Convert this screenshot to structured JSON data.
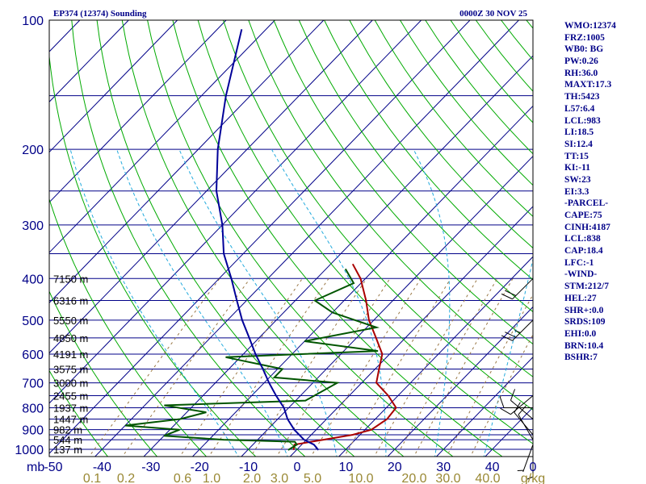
{
  "chart_data": {
    "type": "skew-t",
    "title_left": "EP374 (12374) Sounding",
    "title_right": "0000Z 30 NOV 25",
    "ylim": [
      100,
      1000
    ],
    "xlim": [
      -50,
      50
    ],
    "pressure_ticks": [
      {
        "p": 100,
        "label": "100"
      },
      {
        "p": 200,
        "label": "200"
      },
      {
        "p": 300,
        "label": "300"
      },
      {
        "p": 400,
        "label": "400"
      },
      {
        "p": 500,
        "label": "500"
      },
      {
        "p": 600,
        "label": "600"
      },
      {
        "p": 700,
        "label": "700"
      },
      {
        "p": 800,
        "label": "800"
      },
      {
        "p": 900,
        "label": "900"
      },
      {
        "p": 1000,
        "label": "1000"
      }
    ],
    "isobars": [
      100,
      150,
      200,
      250,
      300,
      350,
      400,
      450,
      500,
      550,
      600,
      650,
      700,
      750,
      800,
      850,
      900,
      925,
      950,
      1000
    ],
    "temp_ticks": [
      {
        "t": -50,
        "label": "-50"
      },
      {
        "t": -40,
        "label": "-40"
      },
      {
        "t": -30,
        "label": "-30"
      },
      {
        "t": -20,
        "label": "-20"
      },
      {
        "t": -10,
        "label": "-10"
      },
      {
        "t": 0,
        "label": "0"
      },
      {
        "t": 10,
        "label": "10"
      },
      {
        "t": 20,
        "label": "20"
      },
      {
        "t": 30,
        "label": "30"
      },
      {
        "t": 40,
        "label": "40"
      }
    ],
    "mb_label": "mb",
    "wind_axis_label": "0",
    "gkg_labels": [
      "0.1",
      "0.2",
      "0.6",
      "1.0",
      "2.0",
      "3.0",
      "5.0",
      "10.0",
      "20.0",
      "30.0",
      "40.0"
    ],
    "gkg_unit": "g/kg",
    "height_labels": [
      {
        "p": 400,
        "label": "7150 m"
      },
      {
        "p": 450,
        "label": "6316 m"
      },
      {
        "p": 500,
        "label": "5550 m"
      },
      {
        "p": 550,
        "label": "4850 m"
      },
      {
        "p": 600,
        "label": "4191 m"
      },
      {
        "p": 650,
        "label": "3575 m"
      },
      {
        "p": 700,
        "label": "3000 m"
      },
      {
        "p": 750,
        "label": "2455 m"
      },
      {
        "p": 800,
        "label": "1937 m"
      },
      {
        "p": 850,
        "label": "1447 m"
      },
      {
        "p": 900,
        "label": "982 m"
      },
      {
        "p": 950,
        "label": "544 m"
      },
      {
        "p": 1000,
        "label": "137 m"
      }
    ],
    "series": [
      {
        "name": "temperature",
        "color": "#aa0000",
        "points": [
          [
            1004,
            -0.6
          ],
          [
            975,
            -1.5
          ],
          [
            950,
            3.5
          ],
          [
            925,
            8.5
          ],
          [
            900,
            11.3
          ],
          [
            850,
            12.4
          ],
          [
            800,
            12.0
          ],
          [
            750,
            8.0
          ],
          [
            700,
            3.0
          ],
          [
            650,
            0.8
          ],
          [
            600,
            -1.5
          ],
          [
            550,
            -6.0
          ],
          [
            500,
            -11.0
          ],
          [
            450,
            -15.5
          ],
          [
            400,
            -21.0
          ],
          [
            370,
            -25.5
          ]
        ]
      },
      {
        "name": "dewpoint",
        "color": "#005500",
        "points": [
          [
            1004,
            -1.7
          ],
          [
            975,
            -1.0
          ],
          [
            960,
            -2.0
          ],
          [
            950,
            -17.0
          ],
          [
            930,
            -30.0
          ],
          [
            900,
            -28.0
          ],
          [
            880,
            -40.0
          ],
          [
            850,
            -30.0
          ],
          [
            820,
            -26.0
          ],
          [
            790,
            -36.0
          ],
          [
            770,
            -8.0
          ],
          [
            700,
            -5.0
          ],
          [
            680,
            -19.0
          ],
          [
            650,
            -19.0
          ],
          [
            610,
            -33.0
          ],
          [
            590,
            -3.0
          ],
          [
            560,
            -20.0
          ],
          [
            520,
            -8.0
          ],
          [
            480,
            -20.0
          ],
          [
            450,
            -26.0
          ],
          [
            410,
            -21.5
          ],
          [
            380,
            -26.0
          ]
        ]
      },
      {
        "name": "parcel",
        "color": "#000099",
        "points": [
          [
            1004,
            4.5
          ],
          [
            975,
            2.5
          ],
          [
            950,
            -0.5
          ],
          [
            900,
            -4.5
          ],
          [
            850,
            -8.0
          ],
          [
            800,
            -11.0
          ],
          [
            750,
            -15.0
          ],
          [
            700,
            -19.0
          ],
          [
            650,
            -23.0
          ],
          [
            600,
            -27.5
          ],
          [
            550,
            -32.0
          ],
          [
            500,
            -37.0
          ],
          [
            450,
            -42.0
          ],
          [
            400,
            -47.5
          ],
          [
            350,
            -54.0
          ],
          [
            300,
            -60.0
          ],
          [
            250,
            -68.0
          ],
          [
            200,
            -76.0
          ],
          [
            150,
            -85.0
          ],
          [
            105,
            -95.0
          ]
        ]
      }
    ],
    "wind_barbs": [
      {
        "p": 1000,
        "dir": 180,
        "speed": 5
      },
      {
        "p": 975,
        "dir": 200,
        "speed": 5
      },
      {
        "p": 950,
        "dir": 330,
        "speed": 10
      },
      {
        "p": 925,
        "dir": 320,
        "speed": 10
      },
      {
        "p": 850,
        "dir": 310,
        "speed": 10
      },
      {
        "p": 800,
        "dir": 270,
        "speed": 10
      },
      {
        "p": 750,
        "dir": 230,
        "speed": 10
      },
      {
        "p": 500,
        "dir": 225,
        "speed": 25
      },
      {
        "p": 400,
        "dir": 225,
        "speed": 20
      }
    ]
  },
  "indices": [
    "WMO:12374",
    "FRZ:1005",
    "WB0: BG",
    "PW:0.26",
    "RH:36.0",
    "MAXT:17.3",
    "TH:5423",
    "L57:6.4",
    "LCL:983",
    "LI:18.5",
    "SI:12.4",
    "TT:15",
    "KI:-11",
    "SW:23",
    "EI:3.3",
    "-PARCEL-",
    "CAPE:75",
    "CINH:4187",
    "LCL:838",
    "CAP:18.4",
    "LFC:-1",
    "-WIND-",
    "STM:212/7",
    "HEL:27",
    "SHR+:0.0",
    "SRDS:109",
    "EHI:0.0",
    "BRN:10.4",
    "BSHR:7"
  ],
  "colors": {
    "background": "#ffffff",
    "frame": "#000000",
    "isobar": "#000088",
    "isotherm": "#000088",
    "dry_adiabat": "#00aa00",
    "moist_adiabat": "#22aadd",
    "mixing_ratio": "#997744",
    "header_text": "#000088",
    "pressure_text": "#000088",
    "temp_axis_text": "#000088",
    "gkg_text": "#998833",
    "height_text": "#000000",
    "index_text": "#000088"
  }
}
